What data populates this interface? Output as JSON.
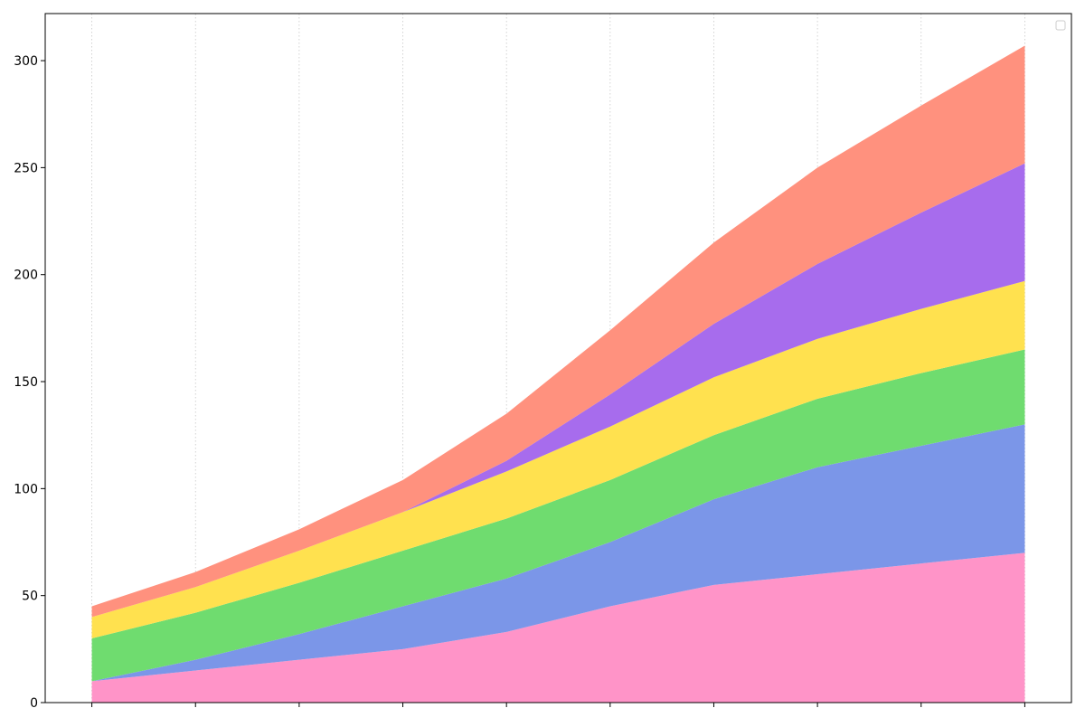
{
  "chart_data": {
    "type": "area",
    "stacked": true,
    "x": [
      0,
      1,
      2,
      3,
      4,
      5,
      6,
      7,
      8,
      9
    ],
    "categories": [
      "",
      "",
      "",
      "",
      "",
      "",
      "",
      "",
      "",
      ""
    ],
    "series": [
      {
        "color": "#ff94c8",
        "values": [
          10,
          15,
          20,
          25,
          33,
          45,
          55,
          60,
          65,
          70
        ]
      },
      {
        "color": "#7b96e8",
        "values": [
          0,
          5,
          12,
          20,
          25,
          30,
          40,
          50,
          55,
          60
        ]
      },
      {
        "color": "#6fdc6f",
        "values": [
          20,
          22,
          24,
          26,
          28,
          29,
          30,
          32,
          34,
          35
        ]
      },
      {
        "color": "#ffe14f",
        "values": [
          10,
          12,
          15,
          18,
          22,
          25,
          27,
          28,
          30,
          32
        ]
      },
      {
        "color": "#a76ced",
        "values": [
          0,
          0,
          0,
          0,
          5,
          15,
          25,
          35,
          45,
          55
        ]
      },
      {
        "color": "#ff917e",
        "values": [
          5,
          7,
          10,
          15,
          22,
          30,
          38,
          45,
          50,
          55
        ]
      }
    ],
    "ylim": [
      0,
      322
    ],
    "yticks": [
      0,
      50,
      100,
      150,
      200,
      250,
      300
    ],
    "xgrid": true,
    "ygrid": false,
    "legend": {
      "position": "top-right",
      "entries": []
    },
    "title": "",
    "xlabel": "",
    "ylabel": ""
  }
}
